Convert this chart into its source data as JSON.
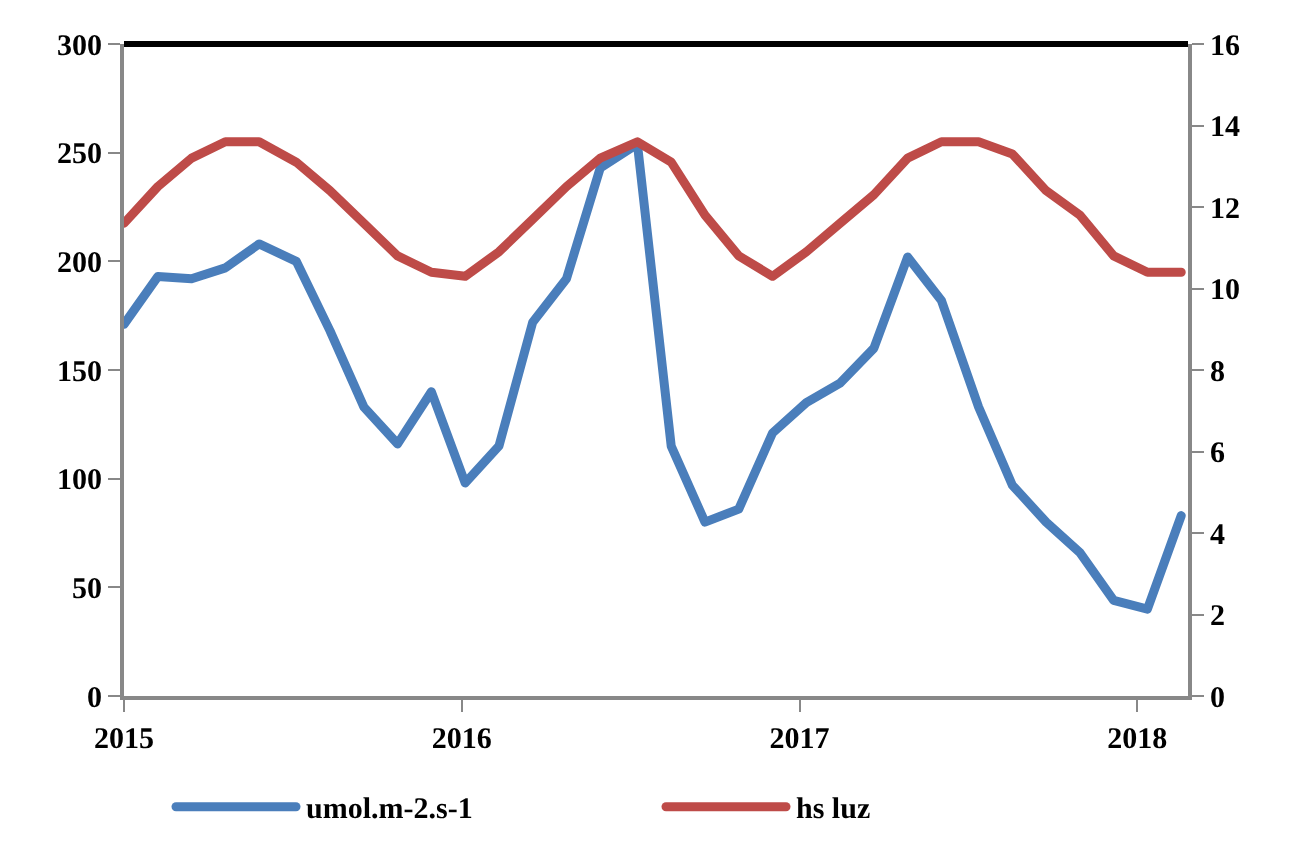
{
  "chart_data": {
    "type": "line",
    "x": [
      2015.0,
      2015.1,
      2015.2,
      2015.3,
      2015.4,
      2015.51,
      2015.61,
      2015.71,
      2015.81,
      2015.91,
      2016.01,
      2016.11,
      2016.21,
      2016.31,
      2016.41,
      2016.52,
      2016.62,
      2016.72,
      2016.82,
      2016.92,
      2017.02,
      2017.12,
      2017.22,
      2017.32,
      2017.42,
      2017.53,
      2017.63,
      2017.73,
      2017.83,
      2017.93,
      2018.03,
      2018.13
    ],
    "series": [
      {
        "name": "umol.m-2.s-1",
        "color": "#4a7ebb",
        "values": [
          171,
          193,
          192,
          197,
          208,
          200,
          168,
          133,
          116,
          140,
          98,
          115,
          172,
          192,
          243,
          254,
          115,
          80,
          86,
          121,
          135,
          144,
          160,
          202,
          182,
          133,
          97,
          80,
          66,
          44,
          40,
          83
        ]
      },
      {
        "name": "hs luz",
        "color": "#be4b48",
        "axis": "y2",
        "values": [
          11.6,
          12.5,
          13.2,
          13.6,
          13.6,
          13.1,
          12.4,
          11.6,
          10.8,
          10.4,
          10.3,
          10.9,
          11.7,
          12.5,
          13.2,
          13.6,
          13.1,
          11.8,
          10.8,
          10.3,
          10.9,
          11.6,
          12.3,
          13.2,
          13.6,
          13.6,
          13.3,
          12.4,
          11.8,
          10.8,
          10.4,
          10.4
        ]
      }
    ],
    "xlim": [
      2015,
      2018.15
    ],
    "xticks": [
      2015,
      2016,
      2017,
      2018
    ],
    "ylim": [
      0,
      300
    ],
    "yticks": [
      0,
      50,
      100,
      150,
      200,
      250,
      300
    ],
    "y2lim": [
      0,
      16
    ],
    "y2ticks": [
      0,
      2,
      4,
      6,
      8,
      10,
      12,
      14,
      16
    ],
    "legend": "bottom",
    "marker": "none",
    "line_style": "solid"
  }
}
